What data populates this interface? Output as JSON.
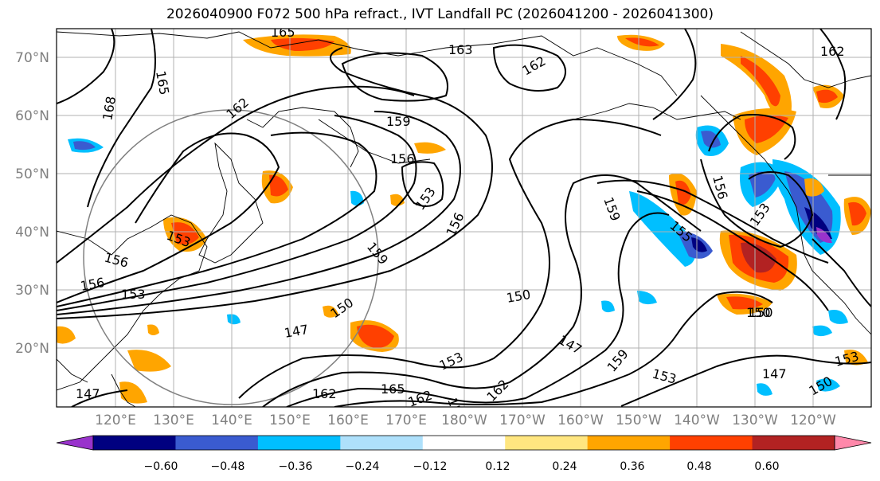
{
  "title": "2026040900 F072 500 hPa refract., IVT Landfall PC (2026041200 - 2026041300)",
  "lat_labels": [
    "70°N",
    "60°N",
    "50°N",
    "40°N",
    "30°N",
    "20°N"
  ],
  "lon_labels": [
    "120°E",
    "130°E",
    "140°E",
    "150°E",
    "160°E",
    "170°E",
    "180°W",
    "170°W",
    "160°W",
    "150°W",
    "140°W",
    "130°W",
    "120°W"
  ],
  "colorbar": {
    "colors": [
      "#9933cc",
      "#000080",
      "#3a5bd0",
      "#00bfff",
      "#aee0fb",
      "#ffffff",
      "#ffe680",
      "#ffa500",
      "#ff4000",
      "#b22222",
      "#ff88aa"
    ],
    "tick_labels": [
      "−0.60",
      "−0.48",
      "−0.36",
      "−0.24",
      "−0.12",
      "0.12",
      "0.24",
      "0.36",
      "0.48",
      "0.60"
    ]
  },
  "contour_labels": [
    "165",
    "165",
    "168",
    "163",
    "162",
    "162",
    "162",
    "159",
    "156",
    "153",
    "156",
    "159",
    "156",
    "153",
    "156",
    "150",
    "147",
    "150",
    "153",
    "159",
    "153",
    "162",
    "165",
    "162",
    "159",
    "162",
    "147",
    "147",
    "150",
    "153",
    "153",
    "159",
    "156",
    "155",
    "150",
    "147",
    "150",
    "153"
  ]
}
